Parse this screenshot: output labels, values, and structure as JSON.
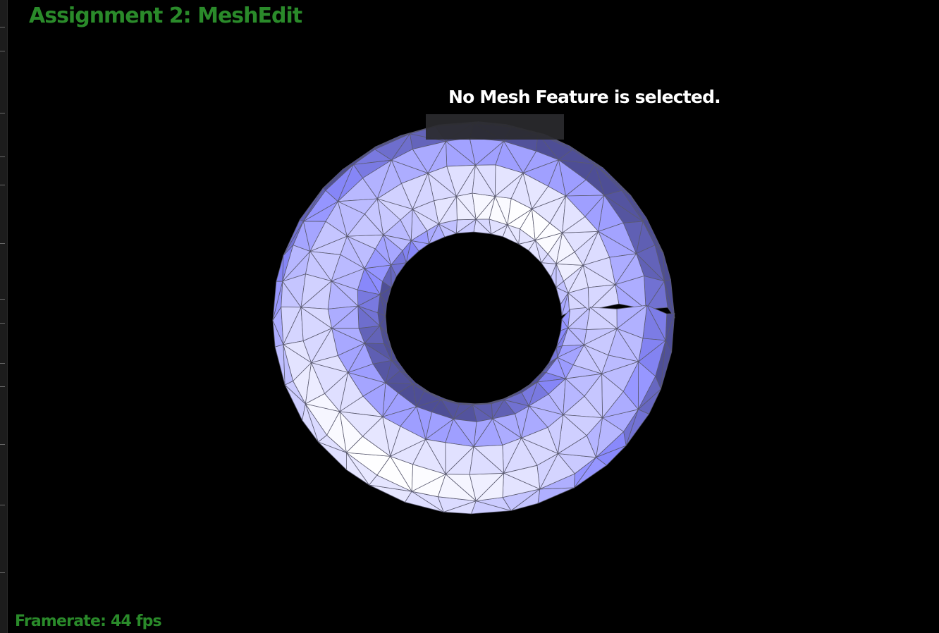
{
  "app": {
    "title": "Assignment 2: MeshEdit"
  },
  "status": {
    "message": "No Mesh Feature is selected."
  },
  "footer": {
    "framerate": "Framerate: 44 fps"
  },
  "mesh": {
    "shape": "torus",
    "render_mode": "flat-shaded wireframe",
    "colors": {
      "background": "#000000",
      "face_light": "#ffffff",
      "face_mid": "#c9c9ff",
      "face_accent": "#8b8bff",
      "face_dark": "#3a3a66",
      "edge": "#5a5a70",
      "title_green": "#2a8a2a"
    }
  }
}
